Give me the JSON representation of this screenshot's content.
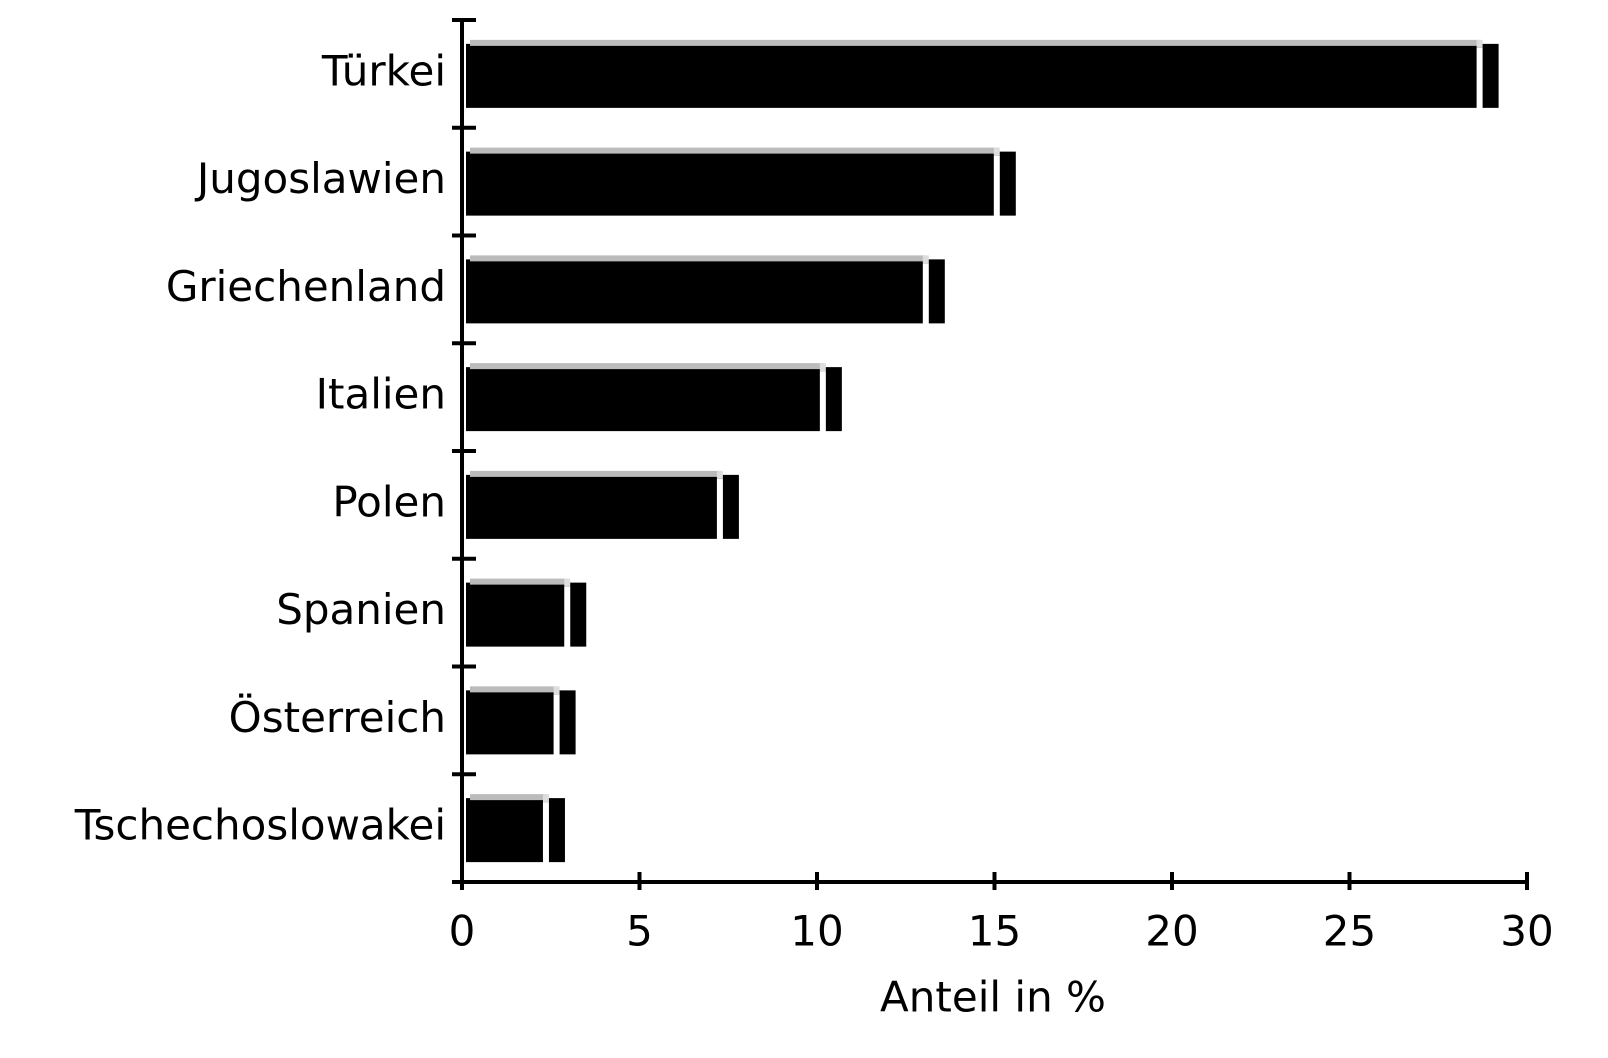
{
  "chart_data": {
    "type": "barh",
    "xlabel": "Anteil in %",
    "categories": [
      "Türkei",
      "Jugoslawien",
      "Griechenland",
      "Italien",
      "Polen",
      "Spanien",
      "Österreich",
      "Tschechoslowakei"
    ],
    "values": [
      29.2,
      15.6,
      13.6,
      10.7,
      7.8,
      3.5,
      3.2,
      2.9
    ],
    "color": "#000000",
    "xlim": [
      0,
      30
    ],
    "xticks": [
      0,
      5,
      10,
      15,
      20,
      25,
      30
    ],
    "grid": false
  }
}
